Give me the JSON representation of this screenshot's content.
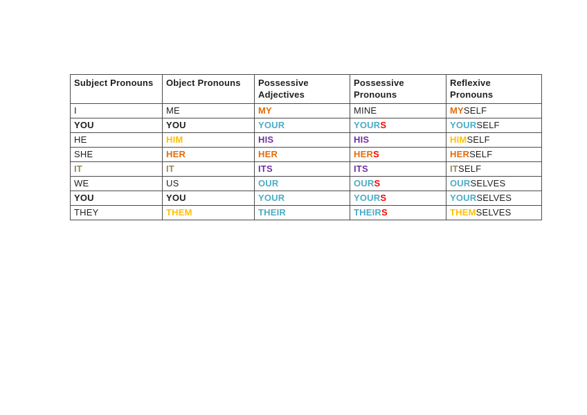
{
  "colors": {
    "black": "#1f1f1f",
    "orange": "#e36c09",
    "gold": "#ffc000",
    "cyan": "#4bacc6",
    "purple": "#7030a0",
    "red": "#ff0000",
    "olive": "#938953"
  },
  "table": {
    "headers": [
      "Subject Pronouns",
      "Object Pronouns",
      "Possessive\nAdjectives",
      "Possessive\nPronouns",
      "Reflexive\nPronouns"
    ],
    "rows": [
      [
        [
          {
            "t": "I",
            "c": "black",
            "b": false
          }
        ],
        [
          {
            "t": "ME",
            "c": "black",
            "b": false
          }
        ],
        [
          {
            "t": "MY",
            "c": "orange",
            "b": true
          }
        ],
        [
          {
            "t": "MINE",
            "c": "black",
            "b": false
          }
        ],
        [
          {
            "t": "MY",
            "c": "orange",
            "b": true
          },
          {
            "t": "SELF",
            "c": "black",
            "b": false
          }
        ]
      ],
      [
        [
          {
            "t": "YOU",
            "c": "black",
            "b": true
          }
        ],
        [
          {
            "t": "YOU",
            "c": "black",
            "b": true
          }
        ],
        [
          {
            "t": "YOUR",
            "c": "cyan",
            "b": true
          }
        ],
        [
          {
            "t": "YOUR",
            "c": "cyan",
            "b": true
          },
          {
            "t": "S",
            "c": "red",
            "b": true
          }
        ],
        [
          {
            "t": "YOUR",
            "c": "cyan",
            "b": true
          },
          {
            "t": "SELF",
            "c": "black",
            "b": false
          }
        ]
      ],
      [
        [
          {
            "t": "HE",
            "c": "black",
            "b": false
          }
        ],
        [
          {
            "t": "HIM",
            "c": "gold",
            "b": true
          }
        ],
        [
          {
            "t": "HIS",
            "c": "purple",
            "b": true
          }
        ],
        [
          {
            "t": "HIS",
            "c": "purple",
            "b": true
          }
        ],
        [
          {
            "t": "HIM",
            "c": "gold",
            "b": true
          },
          {
            "t": "SELF",
            "c": "black",
            "b": false
          }
        ]
      ],
      [
        [
          {
            "t": "SHE",
            "c": "black",
            "b": false
          }
        ],
        [
          {
            "t": "HER",
            "c": "orange",
            "b": true
          }
        ],
        [
          {
            "t": "HER",
            "c": "orange",
            "b": true
          }
        ],
        [
          {
            "t": "HER",
            "c": "orange",
            "b": true
          },
          {
            "t": "S",
            "c": "red",
            "b": true
          }
        ],
        [
          {
            "t": "HER",
            "c": "orange",
            "b": true
          },
          {
            "t": "SELF",
            "c": "black",
            "b": false
          }
        ]
      ],
      [
        [
          {
            "t": "IT",
            "c": "olive",
            "b": true
          }
        ],
        [
          {
            "t": "IT",
            "c": "olive",
            "b": true
          }
        ],
        [
          {
            "t": "ITS",
            "c": "purple",
            "b": true
          }
        ],
        [
          {
            "t": "ITS",
            "c": "purple",
            "b": true
          }
        ],
        [
          {
            "t": "IT",
            "c": "olive",
            "b": true
          },
          {
            "t": "SELF",
            "c": "black",
            "b": false
          }
        ]
      ],
      [
        [
          {
            "t": "WE",
            "c": "black",
            "b": false
          }
        ],
        [
          {
            "t": "US",
            "c": "black",
            "b": false
          }
        ],
        [
          {
            "t": "OUR",
            "c": "cyan",
            "b": true
          }
        ],
        [
          {
            "t": "OUR",
            "c": "cyan",
            "b": true
          },
          {
            "t": "S",
            "c": "red",
            "b": true
          }
        ],
        [
          {
            "t": "OUR",
            "c": "cyan",
            "b": true
          },
          {
            "t": "SELVES",
            "c": "black",
            "b": false
          }
        ]
      ],
      [
        [
          {
            "t": "YOU",
            "c": "black",
            "b": true
          }
        ],
        [
          {
            "t": "YOU",
            "c": "black",
            "b": true
          }
        ],
        [
          {
            "t": "YOUR",
            "c": "cyan",
            "b": true
          }
        ],
        [
          {
            "t": "YOUR",
            "c": "cyan",
            "b": true
          },
          {
            "t": "S",
            "c": "red",
            "b": true
          }
        ],
        [
          {
            "t": "YOUR",
            "c": "cyan",
            "b": true
          },
          {
            "t": "SELVES",
            "c": "black",
            "b": false
          }
        ]
      ],
      [
        [
          {
            "t": "THEY",
            "c": "black",
            "b": false
          }
        ],
        [
          {
            "t": "THEM",
            "c": "gold",
            "b": true
          }
        ],
        [
          {
            "t": "THEIR",
            "c": "cyan",
            "b": true
          }
        ],
        [
          {
            "t": "THEIR",
            "c": "cyan",
            "b": true
          },
          {
            "t": "S",
            "c": "red",
            "b": true
          }
        ],
        [
          {
            "t": "THEM",
            "c": "gold",
            "b": true
          },
          {
            "t": "SELVES",
            "c": "black",
            "b": false
          }
        ]
      ]
    ]
  }
}
